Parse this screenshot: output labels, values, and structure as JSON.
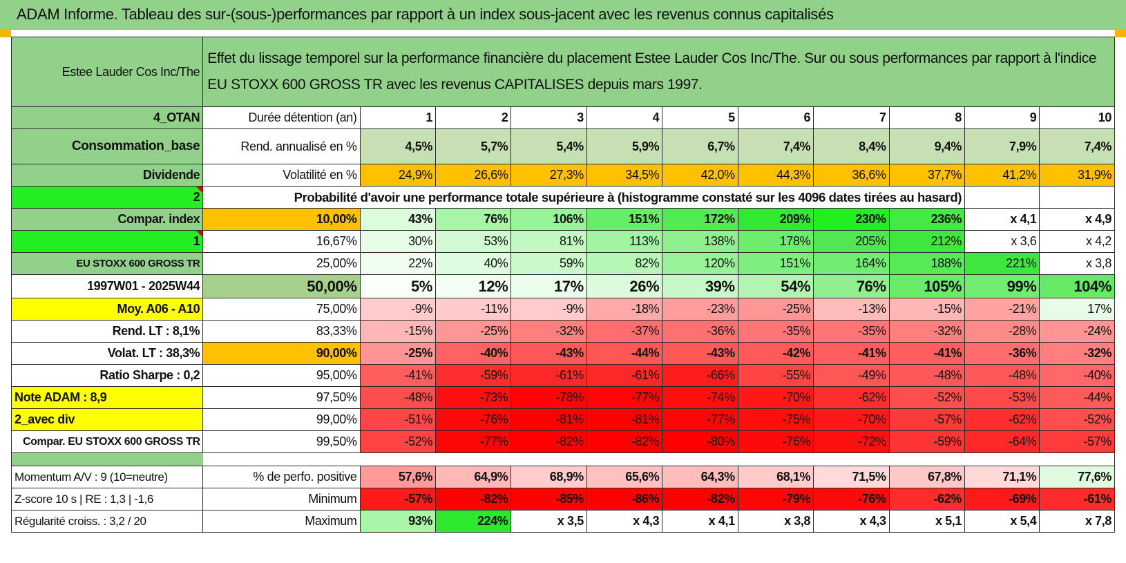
{
  "title": "ADAM Informe. Tableau des sur-(sous-)performances par rapport à un index sous-jacent avec les revenus connus capitalisés",
  "header": {
    "company": "Estee Lauder Cos Inc/The",
    "description": "Effet du lissage temporel sur la performance financière du placement Estee Lauder Cos Inc/The. Sur ou sous performances par rapport à l'indice EU STOXX 600 GROSS TR avec les revenus CAPITALISES depuis mars 1997."
  },
  "labels": {
    "otan": "4_OTAN",
    "consommation": "Consommation_base",
    "dividende": "Dividende",
    "two": "2",
    "compar_index": "Compar. index",
    "one": "1",
    "index_name": "EU STOXX 600 GROSS TR",
    "period": "1997W01 - 2025W44",
    "moy": "Moy. A06 - A10",
    "rend_lt": "Rend. LT :   8,1%",
    "volat_lt": "Volat. LT :   38,3%",
    "sharpe": "Ratio Sharpe :    0,2",
    "note": "Note ADAM : 8,9",
    "avec_div": "2_avec div",
    "compar_eu": "Compar. EU STOXX 600 GROSS TR",
    "momentum": "Momentum A/V : 9 (10=neutre)",
    "zscore": "Z-score 10 s | RE : 1,3 | -1,6",
    "regularite": "Régularité croiss. : 3,2 / 20"
  },
  "duree": {
    "label": "Durée détention (an)",
    "years": [
      "1",
      "2",
      "3",
      "4",
      "5",
      "6",
      "7",
      "8",
      "9",
      "10"
    ]
  },
  "rend": {
    "label": "Rend. annualisé en %",
    "values": [
      "4,5%",
      "5,7%",
      "5,4%",
      "5,9%",
      "6,7%",
      "7,4%",
      "8,4%",
      "9,4%",
      "7,9%",
      "7,4%"
    ]
  },
  "volat": {
    "label": "Volatilité en %",
    "values": [
      "24,9%",
      "26,6%",
      "27,3%",
      "34,5%",
      "42,0%",
      "44,3%",
      "36,6%",
      "37,7%",
      "41,2%",
      "31,9%"
    ]
  },
  "proba_label": "Probabilité d'avoir une performance totale supérieure à (histogramme constaté sur les 4096 dates tirées au hasard)",
  "quantiles": [
    {
      "pct": "10,00%",
      "values": [
        "43%",
        "76%",
        "106%",
        "151%",
        "172%",
        "209%",
        "230%",
        "236%",
        "x 4,1",
        "x 4,9"
      ]
    },
    {
      "pct": "16,67%",
      "values": [
        "30%",
        "53%",
        "81%",
        "113%",
        "138%",
        "178%",
        "205%",
        "212%",
        "x 3,6",
        "x 4,2"
      ]
    },
    {
      "pct": "25,00%",
      "values": [
        "22%",
        "40%",
        "59%",
        "82%",
        "120%",
        "151%",
        "164%",
        "188%",
        "221%",
        "x 3,8"
      ]
    },
    {
      "pct": "50,00%",
      "values": [
        "5%",
        "12%",
        "17%",
        "26%",
        "39%",
        "54%",
        "76%",
        "105%",
        "99%",
        "104%"
      ]
    },
    {
      "pct": "75,00%",
      "values": [
        "-9%",
        "-11%",
        "-9%",
        "-18%",
        "-23%",
        "-25%",
        "-13%",
        "-15%",
        "-21%",
        "17%"
      ]
    },
    {
      "pct": "83,33%",
      "values": [
        "-15%",
        "-25%",
        "-32%",
        "-37%",
        "-36%",
        "-35%",
        "-35%",
        "-32%",
        "-28%",
        "-24%"
      ]
    },
    {
      "pct": "90,00%",
      "values": [
        "-25%",
        "-40%",
        "-43%",
        "-44%",
        "-43%",
        "-42%",
        "-41%",
        "-41%",
        "-36%",
        "-32%"
      ]
    },
    {
      "pct": "95,00%",
      "values": [
        "-41%",
        "-59%",
        "-61%",
        "-61%",
        "-66%",
        "-55%",
        "-49%",
        "-48%",
        "-48%",
        "-40%"
      ]
    },
    {
      "pct": "97,50%",
      "values": [
        "-48%",
        "-73%",
        "-78%",
        "-77%",
        "-74%",
        "-70%",
        "-62%",
        "-52%",
        "-53%",
        "-44%"
      ]
    },
    {
      "pct": "99,00%",
      "values": [
        "-51%",
        "-76%",
        "-81%",
        "-81%",
        "-77%",
        "-75%",
        "-70%",
        "-57%",
        "-62%",
        "-52%"
      ]
    },
    {
      "pct": "99,50%",
      "values": [
        "-52%",
        "-77%",
        "-82%",
        "-82%",
        "-80%",
        "-76%",
        "-72%",
        "-59%",
        "-64%",
        "-57%"
      ]
    }
  ],
  "summary": {
    "positive": {
      "label": "% de perfo. positive",
      "values": [
        "57,6%",
        "64,9%",
        "68,9%",
        "65,6%",
        "64,3%",
        "68,1%",
        "71,5%",
        "67,8%",
        "71,1%",
        "77,6%"
      ]
    },
    "minimum": {
      "label": "Minimum",
      "values": [
        "-57%",
        "-82%",
        "-85%",
        "-86%",
        "-82%",
        "-79%",
        "-76%",
        "-62%",
        "-69%",
        "-61%"
      ]
    },
    "maximum": {
      "label": "Maximum",
      "values": [
        "93%",
        "224%",
        "x 3,5",
        "x 4,3",
        "x 4,1",
        "x 3,8",
        "x 4,3",
        "x 5,1",
        "x 5,4",
        "x 7,8"
      ]
    }
  },
  "colors": {
    "header_green": "#92d18a",
    "bright_green": "#22ee22",
    "orange": "#ffc000",
    "yellow": "#ffff00",
    "label_red": "#d01010",
    "rend_green": "#c6e0b4"
  }
}
